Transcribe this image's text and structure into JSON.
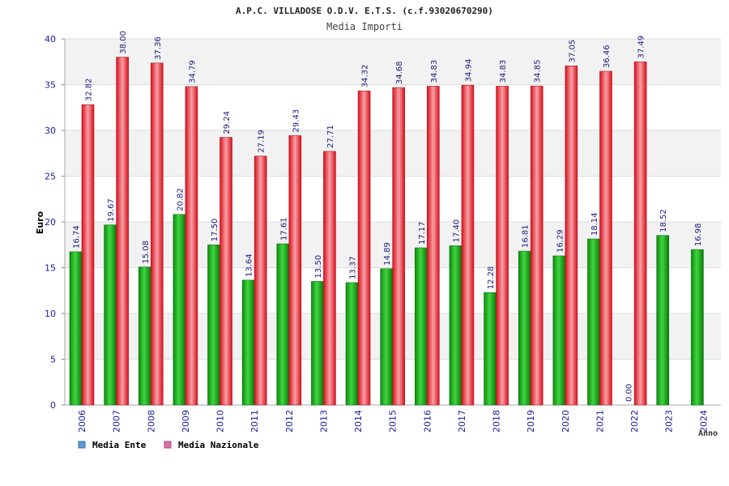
{
  "chart_data": {
    "type": "bar",
    "title": "A.P.C. VILLADOSE O.D.V. E.T.S. (c.f.93020670290)",
    "subtitle": "Media Importi",
    "xlabel": "Anno",
    "ylabel": "Euro",
    "ylim": [
      0,
      40
    ],
    "yticks": [
      "0",
      "5",
      "10",
      "15",
      "20",
      "25",
      "30",
      "35",
      "40"
    ],
    "grid": true,
    "legend_position": "bottom-left",
    "categories": [
      "2006",
      "2007",
      "2008",
      "2009",
      "2010",
      "2011",
      "2012",
      "2013",
      "2014",
      "2015",
      "2016",
      "2017",
      "2018",
      "2019",
      "2020",
      "2021",
      "2022",
      "2023",
      "2024"
    ],
    "series": [
      {
        "name": "Media Ente",
        "color": "#1db31d",
        "legend_color": "#5b9bd5",
        "values": [
          16.74,
          19.67,
          15.08,
          20.82,
          17.5,
          13.64,
          17.61,
          13.5,
          13.37,
          14.89,
          17.17,
          17.4,
          12.28,
          16.81,
          16.29,
          18.14,
          0.0,
          18.52,
          16.98
        ],
        "labels": [
          "16.74",
          "19.67",
          "15.08",
          "20.82",
          "17.50",
          "13.64",
          "17.61",
          "13.50",
          "13.37",
          "14.89",
          "17.17",
          "17.40",
          "12.28",
          "16.81",
          "16.29",
          "18.14",
          "0.00",
          "18.52",
          "16.98"
        ]
      },
      {
        "name": "Media Nazionale",
        "color": "#e8202a",
        "legend_color": "#d86fa8",
        "values": [
          32.82,
          38.0,
          37.36,
          34.79,
          29.24,
          27.19,
          29.43,
          27.71,
          34.32,
          34.68,
          34.83,
          34.94,
          34.83,
          34.85,
          37.05,
          36.46,
          37.49,
          null,
          null
        ],
        "labels": [
          "32.82",
          "38.00",
          "37.36",
          "34.79",
          "29.24",
          "27.19",
          "29.43",
          "27.71",
          "34.32",
          "34.68",
          "34.83",
          "34.94",
          "34.83",
          "34.85",
          "37.05",
          "36.46",
          "37.49",
          null,
          null
        ]
      }
    ]
  }
}
